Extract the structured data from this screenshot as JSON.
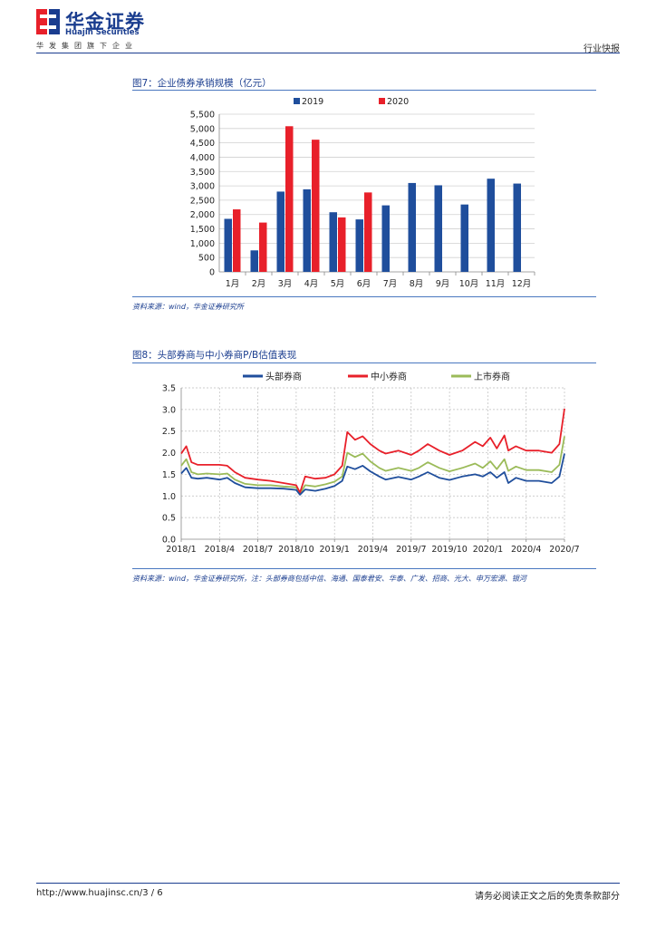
{
  "header": {
    "logo_cn": "华金证券",
    "logo_en": "Huajin Securities",
    "group_line": "华发集团旗下企业",
    "report_type": "行业快报"
  },
  "figure7": {
    "title": "图7：企业债券承销规模（亿元）",
    "source": "资料来源：wind，华金证券研究所"
  },
  "figure8": {
    "title": "图8：头部券商与中小券商P/B估值表现",
    "source": "资料来源：wind，华金证券研究所，注：头部券商包括中信、海通、国泰君安、华泰、广发、招商、光大、申万宏源、银河"
  },
  "footer": {
    "url": "http://www.huajinsc.cn/3 / 6",
    "note": "请务必阅读正文之后的免责条款部分"
  },
  "chart_data": [
    {
      "type": "bar",
      "categories": [
        "1月",
        "2月",
        "3月",
        "4月",
        "5月",
        "6月",
        "7月",
        "8月",
        "9月",
        "10月",
        "11月",
        "12月"
      ],
      "series": [
        {
          "name": "2019",
          "color": "#1f4e9c",
          "values": [
            1850,
            750,
            2800,
            2880,
            2080,
            1830,
            2320,
            3100,
            3020,
            2350,
            3250,
            3080
          ]
        },
        {
          "name": "2020",
          "color": "#e8202a",
          "values": [
            2180,
            1720,
            5080,
            4610,
            1900,
            2770,
            null,
            null,
            null,
            null,
            null,
            null
          ]
        }
      ],
      "ylim": [
        0,
        5500
      ],
      "yticks": [
        0,
        500,
        1000,
        1500,
        2000,
        2500,
        3000,
        3500,
        4000,
        4500,
        5000,
        5500
      ],
      "ytick_labels": [
        "0",
        "500",
        "1,000",
        "1,500",
        "2,000",
        "2,500",
        "3,000",
        "3,500",
        "4,000",
        "4,500",
        "5,000",
        "5,500"
      ],
      "grid": true,
      "legend_position": "top"
    },
    {
      "type": "line",
      "x_ticks": [
        "2018/1",
        "2018/4",
        "2018/7",
        "2018/10",
        "2019/1",
        "2019/4",
        "2019/7",
        "2019/10",
        "2020/1",
        "2020/4",
        "2020/7"
      ],
      "x_tick_positions": [
        0,
        3,
        6,
        9,
        12,
        15,
        18,
        21,
        24,
        27,
        30
      ],
      "ylim": [
        0,
        3.5
      ],
      "yticks": [
        0,
        0.5,
        1,
        1.5,
        2,
        2.5,
        3,
        3.5
      ],
      "ytick_labels": [
        "0.0",
        "0.5",
        "1.0",
        "1.5",
        "2.0",
        "2.5",
        "3.0",
        "3.5"
      ],
      "grid": true,
      "legend_position": "top",
      "series": [
        {
          "name": "头部券商",
          "color": "#1f4e9c",
          "points": [
            [
              0,
              1.52
            ],
            [
              0.4,
              1.65
            ],
            [
              0.8,
              1.42
            ],
            [
              1.3,
              1.4
            ],
            [
              2,
              1.42
            ],
            [
              3,
              1.38
            ],
            [
              3.6,
              1.42
            ],
            [
              4.2,
              1.3
            ],
            [
              5,
              1.2
            ],
            [
              6,
              1.18
            ],
            [
              7,
              1.18
            ],
            [
              8,
              1.17
            ],
            [
              9,
              1.14
            ],
            [
              9.3,
              1.03
            ],
            [
              9.7,
              1.15
            ],
            [
              10.5,
              1.12
            ],
            [
              11.3,
              1.17
            ],
            [
              12,
              1.23
            ],
            [
              12.6,
              1.35
            ],
            [
              13,
              1.68
            ],
            [
              13.6,
              1.62
            ],
            [
              14.2,
              1.7
            ],
            [
              14.8,
              1.57
            ],
            [
              15.5,
              1.45
            ],
            [
              16,
              1.38
            ],
            [
              17,
              1.44
            ],
            [
              18,
              1.38
            ],
            [
              18.6,
              1.45
            ],
            [
              19.3,
              1.55
            ],
            [
              20.2,
              1.42
            ],
            [
              21,
              1.37
            ],
            [
              22,
              1.45
            ],
            [
              23,
              1.5
            ],
            [
              23.6,
              1.45
            ],
            [
              24.2,
              1.55
            ],
            [
              24.7,
              1.42
            ],
            [
              25.3,
              1.55
            ],
            [
              25.6,
              1.3
            ],
            [
              26.2,
              1.42
            ],
            [
              27,
              1.35
            ],
            [
              28,
              1.35
            ],
            [
              29,
              1.3
            ],
            [
              29.6,
              1.45
            ],
            [
              30,
              1.98
            ]
          ]
        },
        {
          "name": "中小券商",
          "color": "#e8202a",
          "points": [
            [
              0,
              1.98
            ],
            [
              0.4,
              2.15
            ],
            [
              0.8,
              1.78
            ],
            [
              1.3,
              1.72
            ],
            [
              2,
              1.72
            ],
            [
              3,
              1.72
            ],
            [
              3.6,
              1.7
            ],
            [
              4.2,
              1.55
            ],
            [
              5,
              1.42
            ],
            [
              6,
              1.38
            ],
            [
              7,
              1.35
            ],
            [
              8,
              1.3
            ],
            [
              9,
              1.25
            ],
            [
              9.3,
              1.08
            ],
            [
              9.7,
              1.45
            ],
            [
              10.5,
              1.4
            ],
            [
              11.3,
              1.42
            ],
            [
              12,
              1.5
            ],
            [
              12.6,
              1.7
            ],
            [
              13,
              2.48
            ],
            [
              13.6,
              2.3
            ],
            [
              14.2,
              2.38
            ],
            [
              14.8,
              2.2
            ],
            [
              15.5,
              2.05
            ],
            [
              16,
              1.98
            ],
            [
              17,
              2.05
            ],
            [
              18,
              1.95
            ],
            [
              18.6,
              2.05
            ],
            [
              19.3,
              2.2
            ],
            [
              20.2,
              2.05
            ],
            [
              21,
              1.95
            ],
            [
              22,
              2.05
            ],
            [
              23,
              2.25
            ],
            [
              23.6,
              2.15
            ],
            [
              24.2,
              2.35
            ],
            [
              24.7,
              2.1
            ],
            [
              25.3,
              2.4
            ],
            [
              25.6,
              2.05
            ],
            [
              26.2,
              2.15
            ],
            [
              27,
              2.05
            ],
            [
              28,
              2.05
            ],
            [
              29,
              2.0
            ],
            [
              29.6,
              2.2
            ],
            [
              30,
              3.02
            ]
          ]
        },
        {
          "name": "上市券商",
          "color": "#9bbb59",
          "points": [
            [
              0,
              1.7
            ],
            [
              0.4,
              1.85
            ],
            [
              0.8,
              1.55
            ],
            [
              1.3,
              1.5
            ],
            [
              2,
              1.52
            ],
            [
              3,
              1.5
            ],
            [
              3.6,
              1.52
            ],
            [
              4.2,
              1.38
            ],
            [
              5,
              1.28
            ],
            [
              6,
              1.25
            ],
            [
              7,
              1.25
            ],
            [
              8,
              1.22
            ],
            [
              9,
              1.2
            ],
            [
              9.3,
              1.05
            ],
            [
              9.7,
              1.25
            ],
            [
              10.5,
              1.22
            ],
            [
              11.3,
              1.27
            ],
            [
              12,
              1.33
            ],
            [
              12.6,
              1.45
            ],
            [
              13,
              2.0
            ],
            [
              13.6,
              1.9
            ],
            [
              14.2,
              1.98
            ],
            [
              14.8,
              1.8
            ],
            [
              15.5,
              1.65
            ],
            [
              16,
              1.58
            ],
            [
              17,
              1.65
            ],
            [
              18,
              1.58
            ],
            [
              18.6,
              1.65
            ],
            [
              19.3,
              1.78
            ],
            [
              20.2,
              1.65
            ],
            [
              21,
              1.57
            ],
            [
              22,
              1.65
            ],
            [
              23,
              1.75
            ],
            [
              23.6,
              1.65
            ],
            [
              24.2,
              1.8
            ],
            [
              24.7,
              1.62
            ],
            [
              25.3,
              1.85
            ],
            [
              25.6,
              1.58
            ],
            [
              26.2,
              1.68
            ],
            [
              27,
              1.6
            ],
            [
              28,
              1.6
            ],
            [
              29,
              1.55
            ],
            [
              29.6,
              1.72
            ],
            [
              30,
              2.38
            ]
          ]
        }
      ]
    }
  ]
}
